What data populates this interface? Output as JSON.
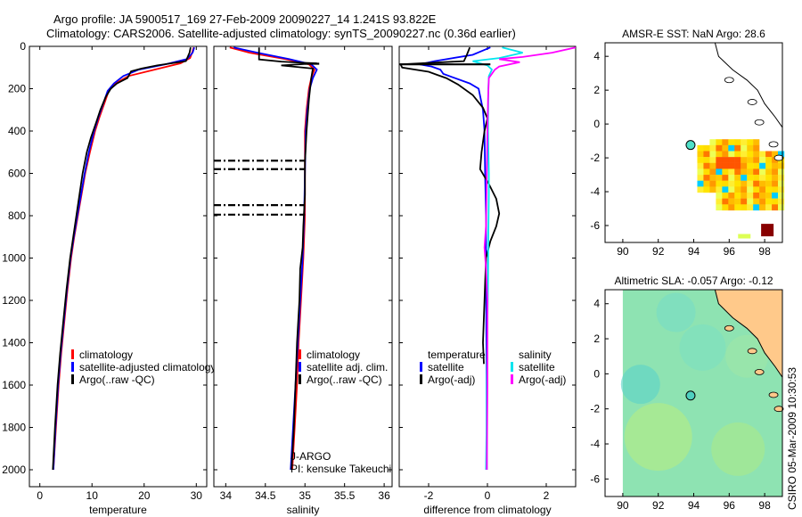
{
  "header": {
    "title_line1": "Argo profile: JA 5900517_169 27-Feb-2009 20090227_14 1.241S 93.822E",
    "title_line2": "Climatology: CARS2006. Satellite-adjusted climatology: synTS_20090227.nc (0.36d earlier)"
  },
  "colors": {
    "climatology": "#ff0000",
    "satellite": "#0000ff",
    "argo": "#000000",
    "salinity_satellite": "#00e5ee",
    "salinity_argo": "#ff00ff"
  },
  "chart_data": [
    {
      "id": "temperature",
      "type": "line",
      "xlabel": "temperature",
      "ylabel": "",
      "xlim": [
        -2,
        32
      ],
      "ylim": [
        2080,
        0
      ],
      "xticks": [
        0,
        10,
        20,
        30
      ],
      "yticks": [
        0,
        200,
        400,
        600,
        800,
        1000,
        1200,
        1400,
        1600,
        1800,
        2000
      ],
      "legend": [
        "climatology",
        "satellite-adjusted climatology",
        "Argo(..raw -QC)"
      ],
      "series": [
        {
          "name": "climatology",
          "color": "#ff0000",
          "points": [
            [
              29.5,
              5
            ],
            [
              29.2,
              30
            ],
            [
              28.8,
              55
            ],
            [
              27.0,
              80
            ],
            [
              22.0,
              110
            ],
            [
              17.0,
              140
            ],
            [
              14.5,
              175
            ],
            [
              13.2,
              210
            ],
            [
              12.5,
              260
            ],
            [
              11.5,
              330
            ],
            [
              10.6,
              400
            ],
            [
              9.6,
              500
            ],
            [
              8.7,
              600
            ],
            [
              8.0,
              700
            ],
            [
              7.3,
              800
            ],
            [
              6.6,
              900
            ],
            [
              6.0,
              1000
            ],
            [
              5.3,
              1150
            ],
            [
              4.7,
              1300
            ],
            [
              4.1,
              1450
            ],
            [
              3.6,
              1600
            ],
            [
              3.1,
              1800
            ],
            [
              2.6,
              2000
            ]
          ]
        },
        {
          "name": "satellite-adjusted climatology",
          "color": "#0000ff",
          "points": [
            [
              29.6,
              5
            ],
            [
              29.3,
              30
            ],
            [
              28.2,
              60
            ],
            [
              24.0,
              85
            ],
            [
              19.0,
              110
            ],
            [
              16.0,
              140
            ],
            [
              14.2,
              175
            ],
            [
              13.0,
              210
            ],
            [
              12.3,
              260
            ],
            [
              11.3,
              330
            ],
            [
              10.4,
              400
            ],
            [
              9.4,
              500
            ],
            [
              8.6,
              600
            ],
            [
              7.9,
              700
            ],
            [
              7.2,
              800
            ],
            [
              6.5,
              900
            ],
            [
              5.9,
              1000
            ],
            [
              5.2,
              1150
            ],
            [
              4.6,
              1300
            ],
            [
              4.0,
              1450
            ],
            [
              3.5,
              1600
            ],
            [
              3.0,
              1800
            ],
            [
              2.6,
              2000
            ]
          ]
        },
        {
          "name": "Argo(..raw -QC)",
          "color": "#000000",
          "points": [
            [
              28.9,
              5
            ],
            [
              28.7,
              30
            ],
            [
              28.0,
              70
            ],
            [
              22.5,
              90
            ],
            [
              19.5,
              105
            ],
            [
              17.5,
              118
            ],
            [
              16.8,
              150
            ],
            [
              14.8,
              175
            ],
            [
              13.6,
              200
            ],
            [
              12.6,
              240
            ],
            [
              11.6,
              300
            ],
            [
              10.8,
              360
            ],
            [
              9.8,
              430
            ],
            [
              9.0,
              500
            ],
            [
              8.2,
              600
            ],
            [
              7.6,
              700
            ],
            [
              7.0,
              800
            ],
            [
              6.4,
              900
            ],
            [
              5.8,
              1000
            ],
            [
              5.1,
              1150
            ],
            [
              4.5,
              1300
            ],
            [
              3.9,
              1450
            ],
            [
              3.4,
              1600
            ],
            [
              2.9,
              1800
            ],
            [
              2.5,
              2000
            ]
          ]
        }
      ]
    },
    {
      "id": "salinity",
      "type": "line",
      "xlabel": "salinity",
      "xlim": [
        33.85,
        36.1
      ],
      "ylim": [
        2080,
        0
      ],
      "xticks": [
        34,
        34.5,
        35,
        35.5,
        36
      ],
      "xticklabels": [
        "34",
        "34.5",
        "35",
        "35.5",
        "36"
      ],
      "legend": [
        "climatology",
        "satellite adj. clim.",
        "Argo(..raw -QC)"
      ],
      "annotations": [
        "J-ARGO",
        "PI: kensuke Takeuchi"
      ],
      "flag_depths": [
        540,
        580,
        750,
        795
      ],
      "series": [
        {
          "name": "climatology",
          "color": "#ff0000",
          "points": [
            [
              34.05,
              5
            ],
            [
              34.3,
              30
            ],
            [
              34.75,
              60
            ],
            [
              35.05,
              85
            ],
            [
              35.12,
              110
            ],
            [
              35.08,
              150
            ],
            [
              35.05,
              200
            ],
            [
              35.02,
              300
            ],
            [
              35.0,
              400
            ],
            [
              35.0,
              600
            ],
            [
              35.0,
              800
            ],
            [
              34.98,
              1000
            ],
            [
              34.95,
              1200
            ],
            [
              34.92,
              1400
            ],
            [
              34.9,
              1600
            ],
            [
              34.87,
              1800
            ],
            [
              34.84,
              2000
            ]
          ]
        },
        {
          "name": "satellite adj. clim.",
          "color": "#0000ff",
          "points": [
            [
              34.1,
              5
            ],
            [
              34.4,
              30
            ],
            [
              34.8,
              60
            ],
            [
              35.08,
              85
            ],
            [
              35.15,
              110
            ],
            [
              35.1,
              150
            ],
            [
              35.06,
              200
            ],
            [
              35.03,
              300
            ],
            [
              35.01,
              400
            ],
            [
              35.0,
              600
            ],
            [
              34.99,
              800
            ],
            [
              34.97,
              1000
            ],
            [
              34.94,
              1200
            ],
            [
              34.91,
              1400
            ],
            [
              34.88,
              1600
            ],
            [
              34.85,
              1800
            ],
            [
              34.82,
              2000
            ]
          ]
        },
        {
          "name": "Argo(..raw -QC)",
          "color": "#000000",
          "points": [
            [
              34.42,
              5
            ],
            [
              34.42,
              40
            ],
            [
              34.42,
              62
            ],
            [
              34.7,
              72
            ],
            [
              35.0,
              78
            ],
            [
              35.15,
              80
            ],
            [
              34.7,
              90
            ],
            [
              35.1,
              105
            ],
            [
              35.08,
              150
            ],
            [
              35.05,
              250
            ],
            [
              35.02,
              400
            ],
            [
              35.0,
              550
            ],
            [
              35.0,
              700
            ],
            [
              34.98,
              850
            ],
            [
              34.97,
              950
            ],
            [
              34.94,
              1050
            ],
            [
              34.93,
              1200
            ],
            [
              34.9,
              1400
            ],
            [
              34.88,
              1600
            ],
            [
              34.86,
              1800
            ],
            [
              34.83,
              2000
            ]
          ]
        }
      ]
    },
    {
      "id": "difference",
      "type": "line",
      "xlabel": "difference from climatology",
      "xlim": [
        -3.0,
        3.0
      ],
      "ylim": [
        2080,
        0
      ],
      "xticks": [
        -2,
        0,
        2
      ],
      "legend_temperature": [
        "temperature",
        "satellite",
        "Argo(-adj)"
      ],
      "legend_salinity": [
        "salinity",
        "satellite",
        "Argo(-adj)"
      ],
      "series": [
        {
          "name": "temperature satellite",
          "color": "#0000ff",
          "points": [
            [
              0.1,
              5
            ],
            [
              -0.5,
              40
            ],
            [
              -1.8,
              70
            ],
            [
              -2.3,
              85
            ],
            [
              -1.9,
              95
            ],
            [
              -1.6,
              110
            ],
            [
              -1.5,
              130
            ],
            [
              -0.6,
              175
            ],
            [
              -0.3,
              200
            ],
            [
              -0.15,
              300
            ],
            [
              -0.1,
              400
            ],
            [
              -0.08,
              600
            ],
            [
              -0.05,
              800
            ],
            [
              -0.05,
              1000
            ],
            [
              -0.03,
              1500
            ],
            [
              -0.02,
              2000
            ]
          ]
        },
        {
          "name": "temperature Argo(-adj)",
          "color": "#000000",
          "points": [
            [
              -0.6,
              5
            ],
            [
              -0.7,
              40
            ],
            [
              -0.8,
              70
            ],
            [
              -2.95,
              85
            ],
            [
              -2.9,
              100
            ],
            [
              -2.0,
              120
            ],
            [
              -1.7,
              135
            ],
            [
              -1.4,
              150
            ],
            [
              -1.0,
              180
            ],
            [
              -0.5,
              230
            ],
            [
              -0.15,
              290
            ],
            [
              0.0,
              340
            ],
            [
              -0.1,
              400
            ],
            [
              -0.2,
              500
            ],
            [
              -0.25,
              580
            ],
            [
              0.05,
              650
            ],
            [
              0.3,
              720
            ],
            [
              0.4,
              790
            ],
            [
              0.3,
              850
            ],
            [
              0.1,
              920
            ],
            [
              -0.05,
              1000
            ],
            [
              -0.1,
              1200
            ],
            [
              -0.15,
              1400
            ],
            [
              -0.12,
              1500
            ]
          ]
        },
        {
          "name": "salinity satellite",
          "color": "#00e5ee",
          "points": [
            [
              0.5,
              5
            ],
            [
              1.2,
              30
            ],
            [
              0.4,
              55
            ],
            [
              -0.5,
              70
            ],
            [
              0.0,
              90
            ],
            [
              0.15,
              110
            ],
            [
              0.05,
              140
            ],
            [
              0.03,
              200
            ],
            [
              0.02,
              400
            ],
            [
              0.05,
              600
            ],
            [
              0.05,
              700
            ],
            [
              0.03,
              900
            ],
            [
              0.02,
              1100
            ],
            [
              0.0,
              1300
            ],
            [
              -0.02,
              1600
            ],
            [
              -0.03,
              1800
            ],
            [
              -0.05,
              2000
            ]
          ]
        },
        {
          "name": "salinity Argo(-adj)",
          "color": "#ff00ff",
          "points": [
            [
              3.0,
              5
            ],
            [
              2.2,
              30
            ],
            [
              1.2,
              50
            ],
            [
              0.4,
              60
            ],
            [
              1.1,
              75
            ],
            [
              0.4,
              95
            ],
            [
              0.25,
              110
            ],
            [
              0.05,
              150
            ],
            [
              0.02,
              250
            ],
            [
              0.0,
              400
            ],
            [
              -0.02,
              600
            ],
            [
              -0.05,
              850
            ],
            [
              -0.1,
              950
            ],
            [
              -0.05,
              1050
            ],
            [
              0.0,
              1200
            ],
            [
              0.0,
              1600
            ],
            [
              -0.02,
              2000
            ]
          ]
        }
      ]
    },
    {
      "id": "amsre-sst",
      "type": "heatmap",
      "title": "AMSR-E SST: NaN Argo: 28.6",
      "xlim": [
        89,
        99
      ],
      "ylim": [
        -7,
        4.8
      ],
      "xticks": [
        90,
        92,
        94,
        96,
        98
      ],
      "yticks": [
        4,
        2,
        0,
        -2,
        -4,
        -6
      ],
      "argo_position": [
        93.822,
        -1.241
      ]
    },
    {
      "id": "altimetric-sla",
      "type": "heatmap",
      "title": "Altimetric SLA: -0.057 Argo: -0.12",
      "xlim": [
        89,
        99
      ],
      "ylim": [
        -7,
        4.8
      ],
      "xticks": [
        90,
        92,
        94,
        96,
        98
      ],
      "yticks": [
        4,
        2,
        0,
        -2,
        -4,
        -6
      ],
      "argo_position": [
        93.822,
        -1.241
      ]
    }
  ],
  "footer": {
    "stamp": "CSIRO 05-Mar-2009 10:30:53"
  }
}
